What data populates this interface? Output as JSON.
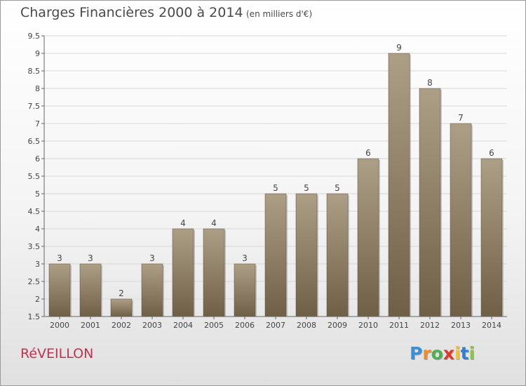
{
  "header": {
    "title": "Charges Financières 2000 à 2014",
    "subtitle": "(en milliers d'€)"
  },
  "footer": {
    "commune": "RéVEILLON",
    "logo_letters": [
      "P",
      "r",
      "o",
      "x",
      "i",
      "t",
      "i"
    ]
  },
  "colors": {
    "bar_top": "#ad9f86",
    "bar_bottom": "#6f5f46",
    "grid": "#d8d8d8",
    "axis": "#666666",
    "title": "#4a4a4a",
    "commune": "#c0324e"
  },
  "chart_data": {
    "type": "bar",
    "title": "Charges Financières 2000 à 2014",
    "subtitle": "(en milliers d'€)",
    "categories": [
      "2000",
      "2001",
      "2002",
      "2003",
      "2004",
      "2005",
      "2006",
      "2007",
      "2008",
      "2009",
      "2010",
      "2011",
      "2012",
      "2013",
      "2014"
    ],
    "values": [
      3,
      3,
      2,
      3,
      4,
      4,
      3,
      5,
      5,
      5,
      6,
      9,
      8,
      7,
      6
    ],
    "ylim": [
      1.5,
      9.5
    ],
    "yticks": [
      "1.5",
      "2",
      "2.5",
      "3",
      "3.5",
      "4",
      "4.5",
      "5",
      "5.5",
      "6",
      "6.5",
      "7",
      "7.5",
      "8",
      "8.5",
      "9",
      "9.5"
    ],
    "grid": true,
    "legend": "none"
  }
}
